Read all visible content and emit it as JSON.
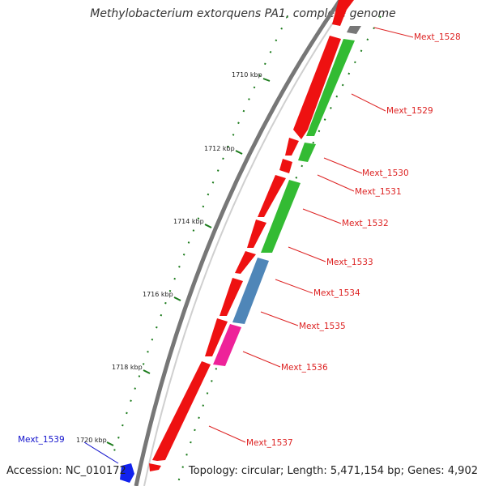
{
  "title": "Methylobacterium extorquens PA1, complete genome",
  "footer": {
    "accession": "Accession: NC_010172",
    "topology": "Topology: circular; Length: 5,471,154 bp; Genes: 4,902"
  },
  "ticks": [
    "1710 kbp",
    "1712 kbp",
    "1714 kbp",
    "1716 kbp",
    "1718 kbp",
    "1720 kbp"
  ],
  "genes": [
    {
      "label": "Mext_1528",
      "color": "#dd2222"
    },
    {
      "label": "Mext_1529",
      "color": "#dd2222"
    },
    {
      "label": "Mext_1530",
      "color": "#dd2222"
    },
    {
      "label": "Mext_1531",
      "color": "#dd2222"
    },
    {
      "label": "Mext_1532",
      "color": "#dd2222"
    },
    {
      "label": "Mext_1533",
      "color": "#dd2222"
    },
    {
      "label": "Mext_1534",
      "color": "#dd2222"
    },
    {
      "label": "Mext_1535",
      "color": "#dd2222"
    },
    {
      "label": "Mext_1536",
      "color": "#dd2222"
    },
    {
      "label": "Mext_1537",
      "color": "#dd2222"
    },
    {
      "label": "Mext_1539",
      "color": "#1111cc"
    }
  ],
  "colors": {
    "forward_gene": "#ee1111",
    "cog_green": "#33bb33",
    "cog_blue": "#4f86b8",
    "cog_pink": "#ee2299",
    "cog_gray": "#777777",
    "backbone": "#808080",
    "tick": "#1a7a1a",
    "reverse_gene": "#1122ee"
  }
}
